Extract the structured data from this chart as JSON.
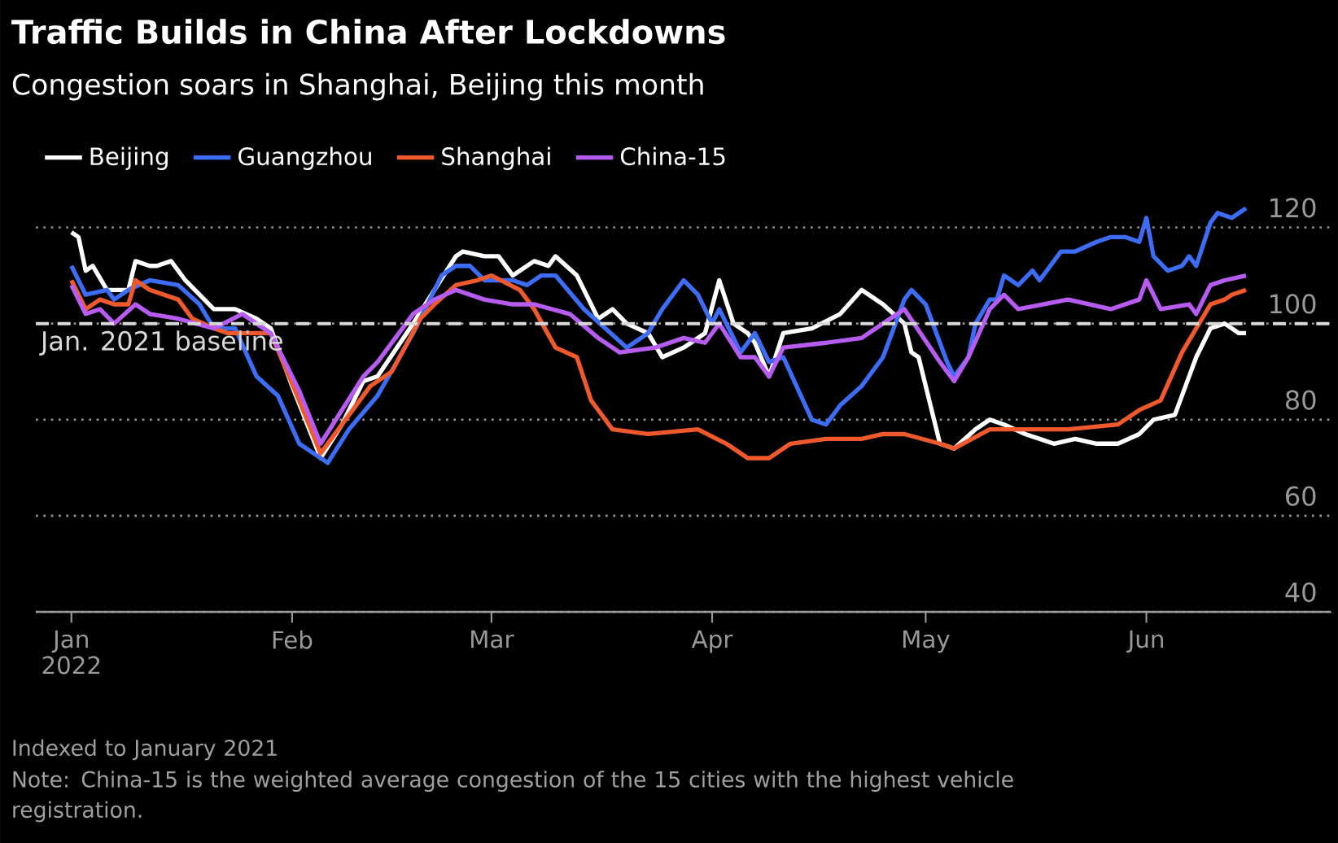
{
  "chart_data": {
    "type": "line",
    "title": "Traffic Builds in China After Lockdowns",
    "subtitle": "Congestion soars in Shanghai, Beijing this month",
    "xlim": [
      "2021-12-27",
      "2022-06-27"
    ],
    "xticks": [
      {
        "value": "2022-01-01",
        "label": "Jan 2022"
      },
      {
        "value": "2022-02-01",
        "label": "Feb"
      },
      {
        "value": "2022-03-01",
        "label": "Mar"
      },
      {
        "value": "2022-04-01",
        "label": "Apr"
      },
      {
        "value": "2022-05-01",
        "label": "May"
      },
      {
        "value": "2022-06-01",
        "label": "Jun"
      }
    ],
    "ylim": [
      40,
      125
    ],
    "yticks": [
      40,
      60,
      80,
      100,
      120
    ],
    "grid": "y",
    "legend": "top left",
    "line_style": "solid",
    "ref_lines": [
      {
        "axis": "y",
        "value": 100,
        "label": "Jan. 2021 baseline",
        "color": "#d9d9d9",
        "line_style": "dashed"
      }
    ],
    "annotations": [
      "Indexed to January 2021",
      "Note: China-15 is the weighted average congestion of the 15 cities with the highest vehicle registration."
    ],
    "series": [
      {
        "name": "Beijing",
        "color": "#ffffff",
        "x": [
          "2022-01-01",
          "2022-01-02",
          "2022-01-03",
          "2022-01-04",
          "2022-01-06",
          "2022-01-09",
          "2022-01-10",
          "2022-01-12",
          "2022-01-13",
          "2022-01-15",
          "2022-01-17",
          "2022-01-19",
          "2022-01-21",
          "2022-01-24",
          "2022-01-27",
          "2022-01-29",
          "2022-02-01",
          "2022-02-05",
          "2022-02-08",
          "2022-02-11",
          "2022-02-13",
          "2022-02-18",
          "2022-02-21",
          "2022-02-24",
          "2022-02-25",
          "2022-02-28",
          "2022-03-02",
          "2022-03-04",
          "2022-03-07",
          "2022-03-09",
          "2022-03-10",
          "2022-03-13",
          "2022-03-16",
          "2022-03-18",
          "2022-03-20",
          "2022-03-23",
          "2022-03-25",
          "2022-03-28",
          "2022-03-31",
          "2022-04-02",
          "2022-04-04",
          "2022-04-06",
          "2022-04-07",
          "2022-04-09",
          "2022-04-11",
          "2022-04-15",
          "2022-04-19",
          "2022-04-22",
          "2022-04-25",
          "2022-04-28",
          "2022-04-29",
          "2022-04-30",
          "2022-05-03",
          "2022-05-05",
          "2022-05-08",
          "2022-05-10",
          "2022-05-12",
          "2022-05-15",
          "2022-05-19",
          "2022-05-22",
          "2022-05-25",
          "2022-05-28",
          "2022-05-31",
          "2022-06-02",
          "2022-06-05",
          "2022-06-07",
          "2022-06-08",
          "2022-06-10",
          "2022-06-12",
          "2022-06-14",
          "2022-06-15"
        ],
        "values": [
          119,
          118,
          111,
          112,
          107,
          107,
          113,
          112,
          112,
          113,
          109,
          106,
          103,
          103,
          101,
          99,
          87,
          72,
          79,
          88,
          89,
          100,
          107,
          114,
          115,
          114,
          114,
          110,
          113,
          112,
          114,
          110,
          101,
          103,
          100,
          98,
          93,
          95,
          98,
          109,
          100,
          98,
          96,
          89,
          98,
          99,
          102,
          107,
          104,
          100,
          94,
          93,
          75,
          74,
          78,
          80,
          79,
          77,
          75,
          76,
          75,
          75,
          77,
          80,
          81,
          89,
          93,
          99,
          100,
          98,
          98
        ]
      },
      {
        "name": "Guangzhou",
        "color": "#3d6cf5",
        "x": [
          "2022-01-01",
          "2022-01-03",
          "2022-01-06",
          "2022-01-07",
          "2022-01-09",
          "2022-01-12",
          "2022-01-16",
          "2022-01-19",
          "2022-01-21",
          "2022-01-24",
          "2022-01-27",
          "2022-01-30",
          "2022-02-02",
          "2022-02-06",
          "2022-02-09",
          "2022-02-13",
          "2022-02-18",
          "2022-02-22",
          "2022-02-24",
          "2022-02-26",
          "2022-02-28",
          "2022-03-04",
          "2022-03-06",
          "2022-03-08",
          "2022-03-10",
          "2022-03-14",
          "2022-03-17",
          "2022-03-20",
          "2022-03-23",
          "2022-03-25",
          "2022-03-28",
          "2022-03-30",
          "2022-04-01",
          "2022-04-02",
          "2022-04-05",
          "2022-04-07",
          "2022-04-09",
          "2022-04-11",
          "2022-04-15",
          "2022-04-17",
          "2022-04-19",
          "2022-04-22",
          "2022-04-25",
          "2022-04-28",
          "2022-04-29",
          "2022-05-01",
          "2022-05-04",
          "2022-05-05",
          "2022-05-07",
          "2022-05-08",
          "2022-05-10",
          "2022-05-11",
          "2022-05-12",
          "2022-05-14",
          "2022-05-16",
          "2022-05-17",
          "2022-05-19",
          "2022-05-20",
          "2022-05-22",
          "2022-05-25",
          "2022-05-27",
          "2022-05-29",
          "2022-05-31",
          "2022-06-01",
          "2022-06-02",
          "2022-06-04",
          "2022-06-06",
          "2022-06-07",
          "2022-06-08",
          "2022-06-10",
          "2022-06-11",
          "2022-06-13",
          "2022-06-15"
        ],
        "values": [
          112,
          106,
          107,
          105,
          107,
          109,
          108,
          104,
          99,
          99,
          89,
          85,
          75,
          71,
          78,
          85,
          98,
          110,
          112,
          112,
          109,
          109,
          108,
          110,
          110,
          103,
          99,
          95,
          98,
          103,
          109,
          106,
          100,
          103,
          94,
          98,
          92,
          93,
          80,
          79,
          83,
          87,
          93,
          105,
          107,
          104,
          92,
          89,
          93,
          100,
          105,
          105,
          110,
          108,
          111,
          109,
          113,
          115,
          115,
          117,
          118,
          118,
          117,
          122,
          114,
          111,
          112,
          114,
          112,
          121,
          123,
          122,
          124
        ]
      },
      {
        "name": "Shanghai",
        "color": "#f0592b",
        "x": [
          "2022-01-01",
          "2022-01-03",
          "2022-01-05",
          "2022-01-07",
          "2022-01-09",
          "2022-01-10",
          "2022-01-12",
          "2022-01-16",
          "2022-01-18",
          "2022-01-21",
          "2022-01-23",
          "2022-01-27",
          "2022-01-29",
          "2022-02-02",
          "2022-02-05",
          "2022-02-12",
          "2022-02-15",
          "2022-02-19",
          "2022-02-21",
          "2022-02-24",
          "2022-02-27",
          "2022-03-01",
          "2022-03-05",
          "2022-03-07",
          "2022-03-10",
          "2022-03-13",
          "2022-03-15",
          "2022-03-18",
          "2022-03-23",
          "2022-03-30",
          "2022-04-03",
          "2022-04-06",
          "2022-04-09",
          "2022-04-12",
          "2022-04-17",
          "2022-04-22",
          "2022-04-25",
          "2022-04-28",
          "2022-05-03",
          "2022-05-05",
          "2022-05-10",
          "2022-05-13",
          "2022-05-21",
          "2022-05-28",
          "2022-05-31",
          "2022-06-03",
          "2022-06-06",
          "2022-06-08",
          "2022-06-10",
          "2022-06-12",
          "2022-06-13",
          "2022-06-15"
        ],
        "values": [
          109,
          103,
          105,
          104,
          104,
          109,
          107,
          105,
          101,
          99,
          98,
          98,
          98,
          84,
          73,
          87,
          90,
          101,
          104,
          108,
          109,
          110,
          107,
          103,
          95,
          93,
          84,
          78,
          77,
          78,
          75,
          72,
          72,
          75,
          76,
          76,
          77,
          77,
          75,
          74,
          78,
          78,
          78,
          79,
          82,
          84,
          94,
          99,
          104,
          105,
          106,
          107
        ]
      },
      {
        "name": "China-15",
        "color": "#b65cf0",
        "x": [
          "2022-01-01",
          "2022-01-03",
          "2022-01-05",
          "2022-01-07",
          "2022-01-10",
          "2022-01-12",
          "2022-01-16",
          "2022-01-21",
          "2022-01-25",
          "2022-01-29",
          "2022-02-02",
          "2022-02-05",
          "2022-02-11",
          "2022-02-13",
          "2022-02-18",
          "2022-02-21",
          "2022-02-24",
          "2022-02-28",
          "2022-03-04",
          "2022-03-07",
          "2022-03-12",
          "2022-03-16",
          "2022-03-19",
          "2022-03-24",
          "2022-03-28",
          "2022-03-31",
          "2022-04-02",
          "2022-04-05",
          "2022-04-07",
          "2022-04-09",
          "2022-04-11",
          "2022-04-17",
          "2022-04-22",
          "2022-04-24",
          "2022-04-28",
          "2022-05-03",
          "2022-05-05",
          "2022-05-07",
          "2022-05-10",
          "2022-05-12",
          "2022-05-14",
          "2022-05-21",
          "2022-05-27",
          "2022-05-31",
          "2022-06-01",
          "2022-06-03",
          "2022-06-07",
          "2022-06-08",
          "2022-06-10",
          "2022-06-12",
          "2022-06-15"
        ],
        "values": [
          108,
          102,
          103,
          100,
          104,
          102,
          101,
          99,
          102,
          98,
          86,
          75,
          89,
          92,
          102,
          105,
          107,
          105,
          104,
          104,
          102,
          97,
          94,
          95,
          97,
          96,
          100,
          93,
          93,
          89,
          95,
          96,
          97,
          99,
          103,
          92,
          88,
          93,
          103,
          106,
          103,
          105,
          103,
          105,
          109,
          103,
          104,
          102,
          108,
          109,
          110
        ]
      }
    ]
  }
}
